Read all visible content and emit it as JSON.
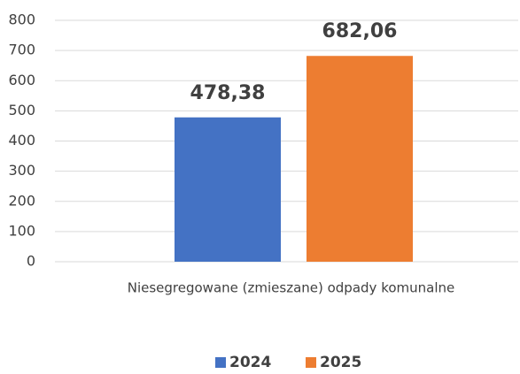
{
  "chart_data": {
    "type": "bar",
    "categories": [
      "Niesegregowane (zmieszane) odpady komunalne"
    ],
    "series": [
      {
        "name": "2024",
        "color": "#4472c4",
        "values": [
          478.38
        ],
        "value_labels": [
          "478,38"
        ]
      },
      {
        "name": "2025",
        "color": "#ed7d31",
        "values": [
          682.06
        ],
        "value_labels": [
          "682,06"
        ]
      }
    ],
    "ylim": [
      0,
      800
    ],
    "yticks": [
      0,
      100,
      200,
      300,
      400,
      500,
      600,
      700,
      800
    ],
    "grid": true,
    "legend": "bottom"
  }
}
